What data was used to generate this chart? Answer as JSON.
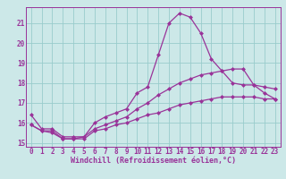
{
  "xlabel": "Windchill (Refroidissement éolien,°C)",
  "bg_color": "#cce8e8",
  "line_color": "#993399",
  "grid_color": "#99cccc",
  "x_values": [
    0,
    1,
    2,
    3,
    4,
    5,
    6,
    7,
    8,
    9,
    10,
    11,
    12,
    13,
    14,
    15,
    16,
    17,
    18,
    19,
    20,
    21,
    22,
    23
  ],
  "line1_y": [
    16.4,
    15.7,
    15.7,
    15.3,
    15.3,
    15.3,
    16.0,
    16.3,
    16.5,
    16.7,
    17.5,
    17.8,
    19.4,
    21.0,
    21.5,
    21.3,
    20.5,
    19.2,
    18.6,
    18.0,
    17.9,
    17.9,
    17.5,
    17.2
  ],
  "line2_y": [
    15.9,
    15.6,
    15.6,
    15.2,
    15.2,
    15.3,
    15.7,
    15.9,
    16.1,
    16.3,
    16.7,
    17.0,
    17.4,
    17.7,
    18.0,
    18.2,
    18.4,
    18.5,
    18.6,
    18.7,
    18.7,
    17.9,
    17.8,
    17.7
  ],
  "line3_y": [
    15.9,
    15.6,
    15.5,
    15.2,
    15.2,
    15.2,
    15.6,
    15.7,
    15.9,
    16.0,
    16.2,
    16.4,
    16.5,
    16.7,
    16.9,
    17.0,
    17.1,
    17.2,
    17.3,
    17.3,
    17.3,
    17.3,
    17.2,
    17.2
  ],
  "ylim": [
    14.8,
    21.8
  ],
  "xlim": [
    -0.5,
    23.5
  ],
  "yticks": [
    15,
    16,
    17,
    18,
    19,
    20,
    21
  ],
  "xticks": [
    0,
    1,
    2,
    3,
    4,
    5,
    6,
    7,
    8,
    9,
    10,
    11,
    12,
    13,
    14,
    15,
    16,
    17,
    18,
    19,
    20,
    21,
    22,
    23
  ],
  "marker": "D",
  "marker_size": 2,
  "line_width": 0.9,
  "label_fontsize": 6,
  "tick_fontsize": 5.5
}
